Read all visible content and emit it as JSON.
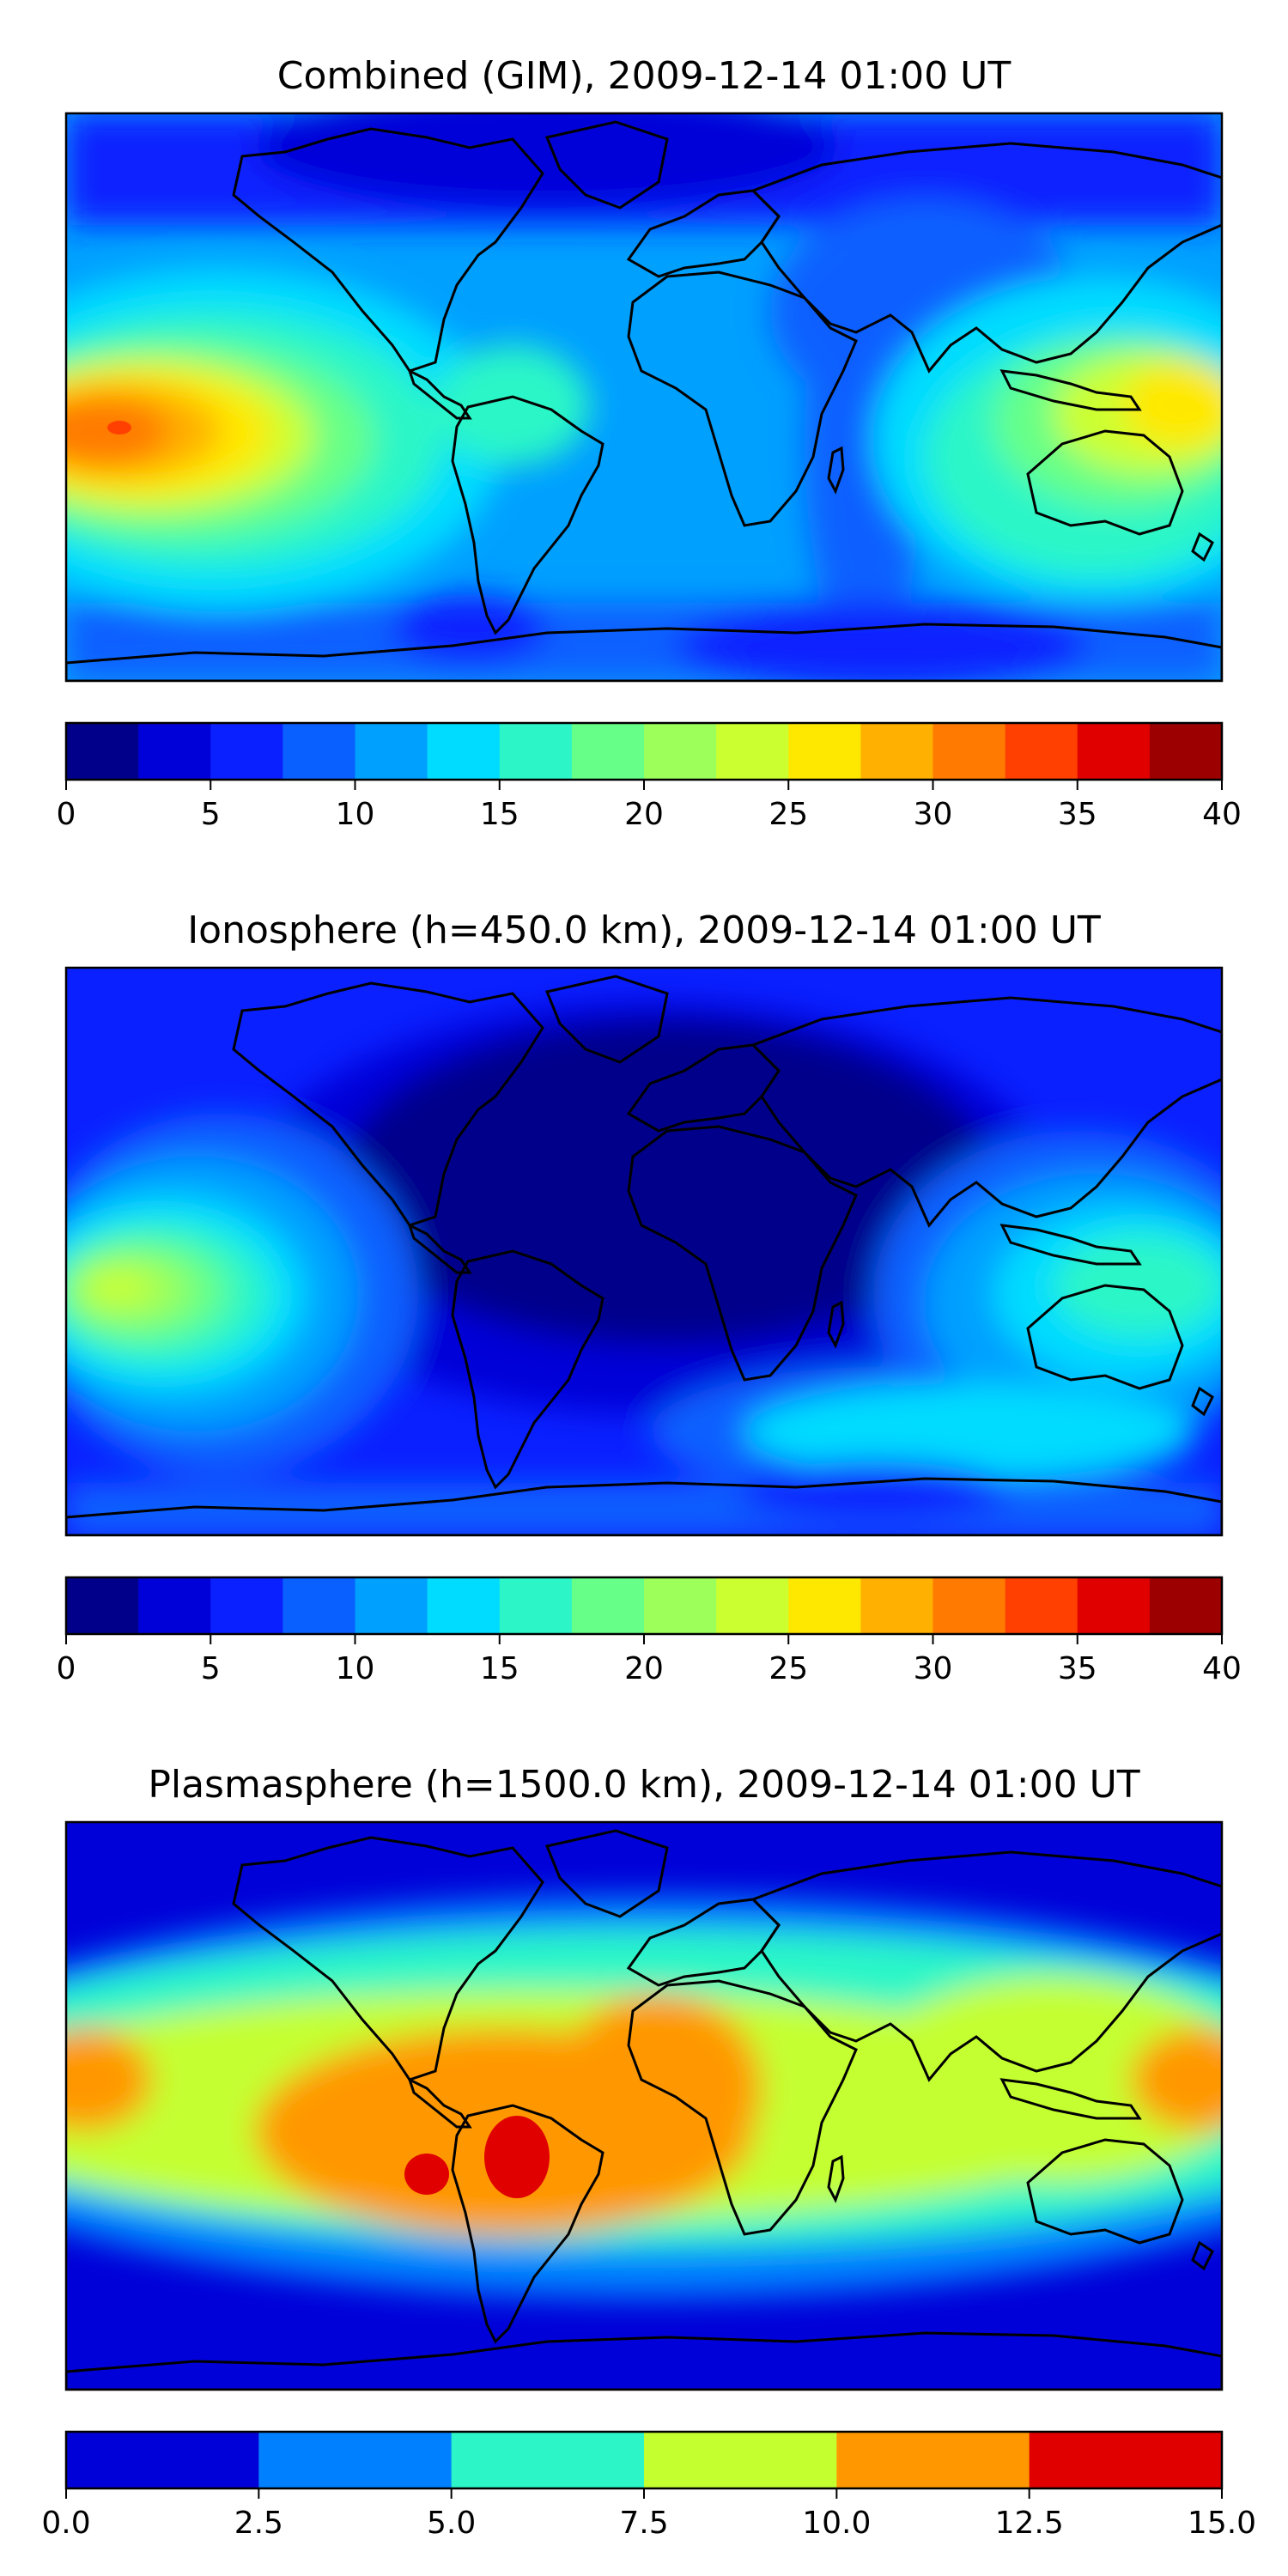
{
  "chart_data": [
    {
      "type": "heatmap",
      "title": "Combined (GIM), 2009-12-14 01:00 UT",
      "colorbar": {
        "ticks": [
          "0",
          "5",
          "10",
          "15",
          "20",
          "25",
          "30",
          "35",
          "40"
        ],
        "vmin": 0,
        "vmax": 40,
        "step": 2.5,
        "colors": [
          "#00008b",
          "#0000d8",
          "#0a20ff",
          "#0a60ff",
          "#00a0ff",
          "#00dcff",
          "#2cf6c8",
          "#66ff88",
          "#9cff5a",
          "#ccff30",
          "#ffe800",
          "#ffb000",
          "#ff7a00",
          "#ff4000",
          "#e00000",
          "#9c0000"
        ]
      },
      "features": [
        {
          "lon": -160,
          "lat": 0,
          "value": 30,
          "note": "equatorial Pacific maximum"
        },
        {
          "lon": 150,
          "lat": 0,
          "value": 25,
          "note": "western Pacific / Indonesia"
        },
        {
          "lon": 30,
          "lat": 0,
          "value": 7.5,
          "note": "east Africa / Indian ocean minimum"
        },
        {
          "lon": 0,
          "lat": 80,
          "value": 2.5,
          "note": "northern polar minimum"
        }
      ]
    },
    {
      "type": "heatmap",
      "title": "Ionosphere  (h=450.0 km), 2009-12-14 01:00 UT",
      "colorbar": {
        "ticks": [
          "0",
          "5",
          "10",
          "15",
          "20",
          "25",
          "30",
          "35",
          "40"
        ],
        "vmin": 0,
        "vmax": 40,
        "step": 2.5,
        "colors": [
          "#00008b",
          "#0000d8",
          "#0a20ff",
          "#0a60ff",
          "#00a0ff",
          "#00dcff",
          "#2cf6c8",
          "#66ff88",
          "#9cff5a",
          "#ccff30",
          "#ffe800",
          "#ffb000",
          "#ff7a00",
          "#ff4000",
          "#e00000",
          "#9c0000"
        ]
      },
      "features": [
        {
          "lon": -165,
          "lat": 0,
          "value": 22.5,
          "note": "equatorial Pacific maximum"
        },
        {
          "lon": 150,
          "lat": -5,
          "value": 17.5,
          "note": "western Pacific"
        },
        {
          "lon": 0,
          "lat": 10,
          "value": 2.5,
          "note": "Atlantic / Africa night-side minimum"
        }
      ]
    },
    {
      "type": "heatmap",
      "title": "Plasmasphere (h=1500.0 km), 2009-12-14 01:00 UT",
      "colorbar": {
        "ticks": [
          "0.0",
          "2.5",
          "5.0",
          "7.5",
          "10.0",
          "12.5",
          "15.0"
        ],
        "vmin": 0,
        "vmax": 15,
        "step": 2.5,
        "colors": [
          "#0000d8",
          "#0080ff",
          "#2cf6c8",
          "#c4ff30",
          "#ff9800",
          "#e00000"
        ]
      },
      "features": [
        {
          "lon": -45,
          "lat": -15,
          "value": 12.5,
          "note": "South America / Atlantic maximum"
        },
        {
          "lon": -10,
          "lat": 0,
          "value": 10,
          "note": "equatorial Atlantic band"
        },
        {
          "lon": 170,
          "lat": 0,
          "value": 10,
          "note": "western Pacific"
        },
        {
          "lon": 0,
          "lat": 75,
          "value": 2.5,
          "note": "high latitudes"
        }
      ]
    }
  ]
}
